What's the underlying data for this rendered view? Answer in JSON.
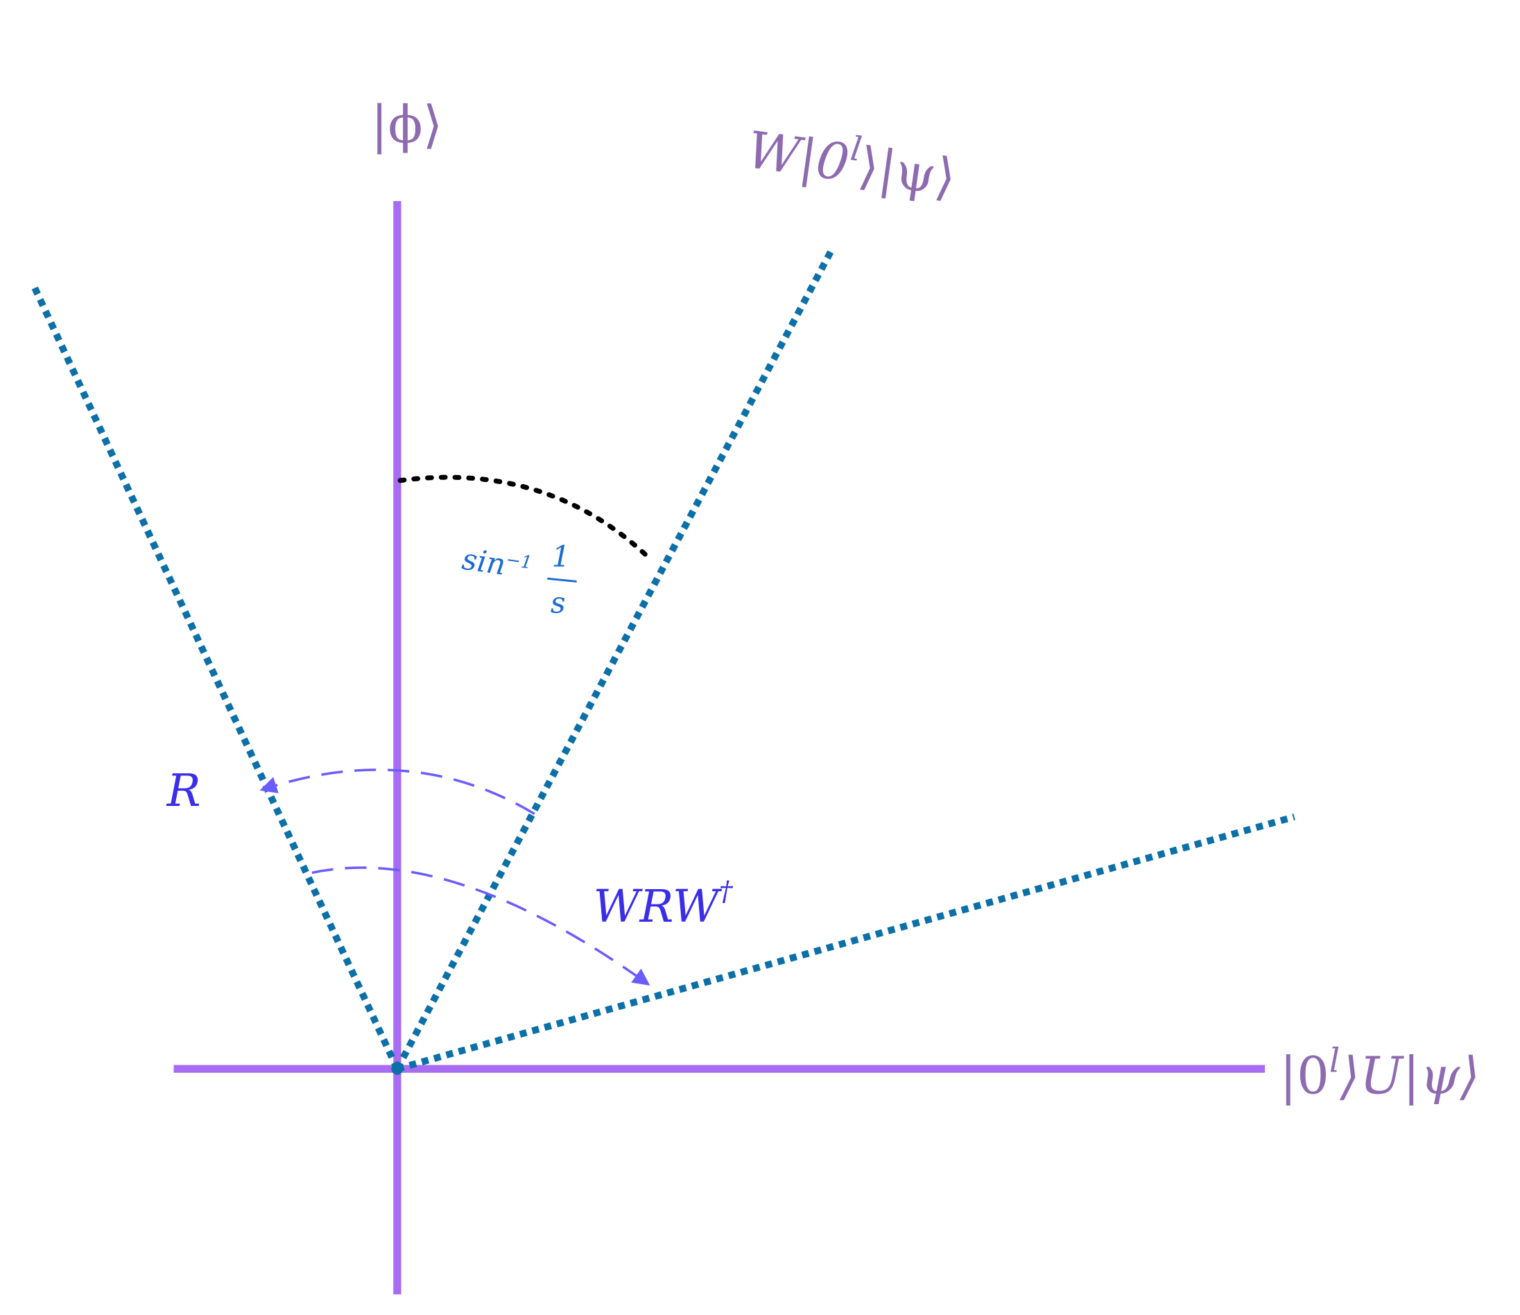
{
  "labels": {
    "phi": "|ϕ⟩",
    "w_state": {
      "pre": "W|0",
      "sup": "l",
      "post": "⟩|ψ⟩"
    },
    "u_state": {
      "pre": "|0",
      "sup": "l",
      "post": "⟩U|ψ⟩"
    },
    "angle": {
      "fn": "sin",
      "sup": "−1",
      "num": "1",
      "den": "s"
    },
    "r": "R",
    "wrw": {
      "base": "WRW",
      "sup": "†"
    }
  }
}
